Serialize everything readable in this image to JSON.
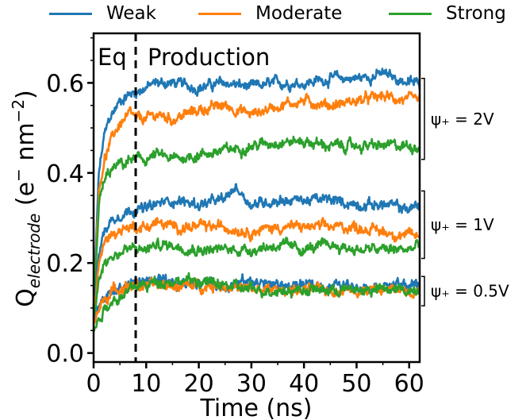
{
  "chart_data": {
    "type": "line",
    "xlabel": "Time (ns)",
    "ylabel": "Q",
    "ylabel_sub": "electrode",
    "ylabel_units": " (e",
    "ylabel_units_sup": "−",
    "ylabel_units_tail": " nm",
    "ylabel_units_sup2": "−2",
    "ylabel_close": ")",
    "xlim": [
      0,
      62
    ],
    "ylim": [
      -0.02,
      0.71
    ],
    "xticks": [
      0,
      10,
      20,
      30,
      40,
      50,
      60
    ],
    "xtick_labels": [
      "0",
      "10",
      "20",
      "30",
      "40",
      "50",
      "60"
    ],
    "yticks": [
      0.0,
      0.2,
      0.4,
      0.6
    ],
    "ytick_labels": [
      "0.0",
      "0.2",
      "0.4",
      "0.6"
    ],
    "grid": false,
    "legend_placement": "top, above plot",
    "legend": [
      {
        "name": "Weak",
        "color": "#1f77b4"
      },
      {
        "name": "Moderate",
        "color": "#ff7f0e"
      },
      {
        "name": "Strong",
        "color": "#2ca02c"
      }
    ],
    "vline": {
      "x": 8,
      "style": "dashed"
    },
    "region_labels": {
      "eq": "Eq",
      "production": "Production"
    },
    "brackets": [
      {
        "label": "ψ₊ = 2V",
        "y_low": 0.43,
        "y_high": 0.61
      },
      {
        "label": "ψ₊ = 1V",
        "y_low": 0.21,
        "y_high": 0.36
      },
      {
        "label": "ψ₊ = 0.5V",
        "y_low": 0.105,
        "y_high": 0.17
      }
    ],
    "series": [
      {
        "name": "Weak",
        "group": "2V",
        "color": "#1f77b4",
        "x": [
          0,
          1,
          2,
          3,
          4,
          5,
          6,
          7,
          8,
          10,
          12,
          15,
          20,
          25,
          30,
          35,
          40,
          45,
          50,
          55,
          60,
          62
        ],
        "values": [
          0.1,
          0.4,
          0.48,
          0.52,
          0.54,
          0.56,
          0.57,
          0.575,
          0.58,
          0.59,
          0.6,
          0.6,
          0.59,
          0.6,
          0.59,
          0.6,
          0.6,
          0.61,
          0.61,
          0.62,
          0.6,
          0.6
        ]
      },
      {
        "name": "Moderate",
        "group": "2V",
        "color": "#ff7f0e",
        "x": [
          0,
          1,
          2,
          3,
          4,
          5,
          6,
          7,
          8,
          10,
          12,
          15,
          20,
          25,
          30,
          35,
          40,
          45,
          50,
          55,
          60,
          62
        ],
        "values": [
          0.1,
          0.36,
          0.43,
          0.46,
          0.49,
          0.51,
          0.52,
          0.53,
          0.52,
          0.52,
          0.53,
          0.52,
          0.54,
          0.55,
          0.53,
          0.55,
          0.56,
          0.55,
          0.56,
          0.57,
          0.56,
          0.56
        ]
      },
      {
        "name": "Strong",
        "group": "2V",
        "color": "#2ca02c",
        "x": [
          0,
          1,
          2,
          3,
          4,
          5,
          6,
          7,
          8,
          10,
          12,
          15,
          20,
          25,
          30,
          35,
          40,
          45,
          50,
          55,
          60,
          62
        ],
        "values": [
          0.1,
          0.33,
          0.38,
          0.4,
          0.41,
          0.42,
          0.42,
          0.43,
          0.43,
          0.43,
          0.44,
          0.43,
          0.44,
          0.45,
          0.46,
          0.47,
          0.47,
          0.46,
          0.46,
          0.46,
          0.46,
          0.46
        ]
      },
      {
        "name": "Weak",
        "group": "1V",
        "color": "#1f77b4",
        "x": [
          0,
          1,
          2,
          3,
          4,
          5,
          6,
          7,
          8,
          10,
          12,
          15,
          20,
          25,
          27,
          30,
          35,
          40,
          45,
          50,
          55,
          60,
          62
        ],
        "values": [
          0.08,
          0.22,
          0.27,
          0.29,
          0.3,
          0.31,
          0.31,
          0.32,
          0.32,
          0.32,
          0.33,
          0.34,
          0.33,
          0.34,
          0.37,
          0.33,
          0.34,
          0.34,
          0.34,
          0.33,
          0.33,
          0.32,
          0.33
        ]
      },
      {
        "name": "Moderate",
        "group": "1V",
        "color": "#ff7f0e",
        "x": [
          0,
          1,
          2,
          3,
          4,
          5,
          6,
          7,
          8,
          10,
          12,
          15,
          20,
          25,
          30,
          35,
          40,
          45,
          50,
          55,
          60,
          62
        ],
        "values": [
          0.07,
          0.2,
          0.24,
          0.26,
          0.27,
          0.27,
          0.28,
          0.28,
          0.28,
          0.28,
          0.29,
          0.28,
          0.28,
          0.28,
          0.27,
          0.28,
          0.28,
          0.28,
          0.28,
          0.27,
          0.26,
          0.26
        ]
      },
      {
        "name": "Strong",
        "group": "1V",
        "color": "#2ca02c",
        "x": [
          0,
          1,
          2,
          3,
          4,
          5,
          6,
          7,
          8,
          10,
          12,
          15,
          20,
          25,
          30,
          35,
          40,
          45,
          50,
          55,
          60,
          62
        ],
        "values": [
          0.06,
          0.17,
          0.2,
          0.21,
          0.22,
          0.22,
          0.23,
          0.23,
          0.23,
          0.23,
          0.24,
          0.24,
          0.23,
          0.23,
          0.23,
          0.24,
          0.23,
          0.24,
          0.23,
          0.23,
          0.23,
          0.24
        ]
      },
      {
        "name": "Weak",
        "group": "0.5V",
        "color": "#1f77b4",
        "x": [
          0,
          2,
          4,
          6,
          8,
          10,
          12,
          15,
          20,
          25,
          30,
          35,
          40,
          45,
          50,
          55,
          60,
          62
        ],
        "values": [
          0.07,
          0.12,
          0.14,
          0.15,
          0.16,
          0.16,
          0.16,
          0.15,
          0.16,
          0.15,
          0.16,
          0.15,
          0.15,
          0.15,
          0.15,
          0.15,
          0.15,
          0.15
        ]
      },
      {
        "name": "Moderate",
        "group": "0.5V",
        "color": "#ff7f0e",
        "x": [
          0,
          2,
          4,
          6,
          8,
          10,
          12,
          15,
          20,
          25,
          30,
          35,
          40,
          45,
          50,
          55,
          60,
          62
        ],
        "values": [
          0.07,
          0.12,
          0.14,
          0.15,
          0.15,
          0.15,
          0.15,
          0.15,
          0.15,
          0.15,
          0.14,
          0.14,
          0.14,
          0.14,
          0.14,
          0.14,
          0.14,
          0.14
        ]
      },
      {
        "name": "Strong",
        "group": "0.5V",
        "color": "#2ca02c",
        "x": [
          0,
          2,
          4,
          6,
          8,
          10,
          12,
          15,
          20,
          25,
          30,
          35,
          40,
          45,
          50,
          55,
          60,
          62
        ],
        "values": [
          0.05,
          0.1,
          0.12,
          0.13,
          0.15,
          0.15,
          0.16,
          0.16,
          0.16,
          0.15,
          0.14,
          0.14,
          0.14,
          0.14,
          0.14,
          0.14,
          0.14,
          0.14
        ]
      }
    ]
  }
}
